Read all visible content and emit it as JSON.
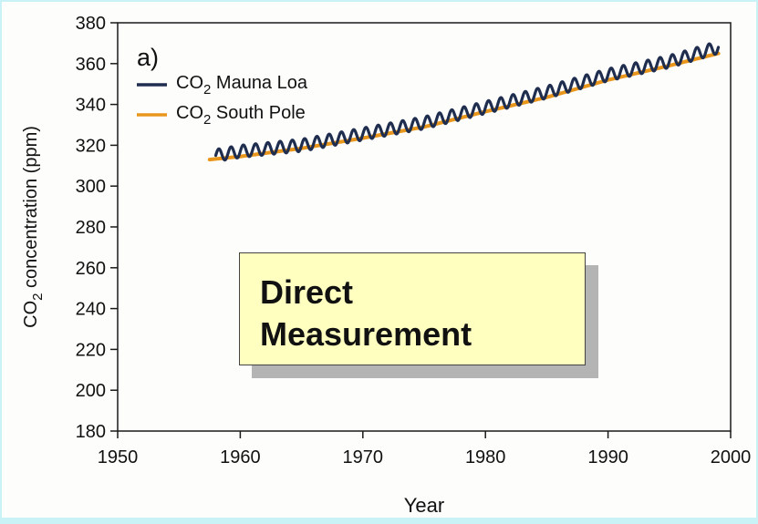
{
  "chart_data": {
    "type": "line",
    "panel_label": "a)",
    "xlabel": "Year",
    "ylabel": {
      "prefix": "CO",
      "subscript": "2",
      "suffix": " concentration (ppm)"
    },
    "xlim": [
      1950,
      2000
    ],
    "ylim": [
      180,
      380
    ],
    "x_ticks": [
      1950,
      1960,
      1970,
      1980,
      1990,
      2000
    ],
    "y_ticks": [
      180,
      200,
      220,
      240,
      260,
      280,
      300,
      320,
      340,
      360,
      380
    ],
    "grid": false,
    "legend_position": "top-left",
    "series": [
      {
        "name": "Mauna Loa",
        "name_prefix": "CO",
        "name_subscript": "2",
        "color": "#1f2d4f",
        "seasonal_amplitude_ppm": 3,
        "x": [
          1958,
          1960,
          1965,
          1970,
          1975,
          1980,
          1985,
          1990,
          1995,
          1999
        ],
        "values": [
          315,
          317,
          320,
          325.5,
          331,
          338.5,
          346,
          354.5,
          361,
          368
        ]
      },
      {
        "name": "South Pole",
        "name_prefix": "CO",
        "name_subscript": "2",
        "color": "#e8961c",
        "x": [
          1957.5,
          1960,
          1965,
          1970,
          1975,
          1980,
          1985,
          1990,
          1995,
          1999
        ],
        "values": [
          313,
          314.5,
          318.5,
          323.5,
          329,
          336.5,
          343.5,
          352,
          359,
          365
        ]
      }
    ]
  },
  "callout": {
    "line1": "Direct",
    "line2": "Measurement"
  }
}
